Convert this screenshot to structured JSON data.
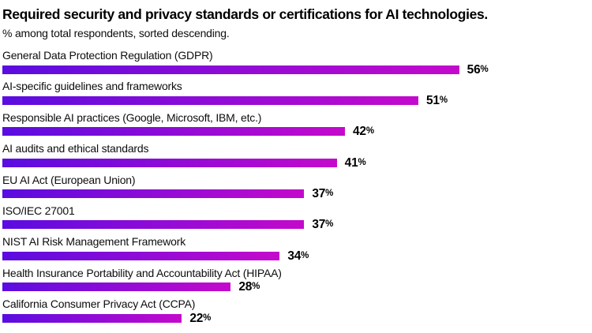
{
  "chart_data": {
    "type": "bar",
    "orientation": "horizontal",
    "title": "Required security and privacy standards or certifications for AI technologies.",
    "subtitle": "% among total respondents, sorted descending.",
    "categories": [
      "General Data Protection Regulation (GDPR)",
      "AI-specific guidelines and frameworks",
      "Responsible AI practices (Google, Microsoft, IBM, etc.)",
      "AI audits and ethical standards",
      "EU AI Act (European Union)",
      "ISO/IEC 27001",
      "NIST AI Risk Management Framework",
      "Health Insurance Portability and Accountability Act (HIPAA)",
      "California Consumer Privacy Act (CCPA)"
    ],
    "values": [
      56,
      51,
      42,
      41,
      37,
      37,
      34,
      28,
      22
    ],
    "value_suffix": "%",
    "xlim": [
      0,
      72
    ],
    "grid": false,
    "legend": false,
    "sort_order": "descending"
  },
  "colors": {
    "bar_gradient_start": "#5a0ce0",
    "bar_gradient_end": "#c40acc",
    "text": "#000000",
    "background": "#ffffff"
  }
}
